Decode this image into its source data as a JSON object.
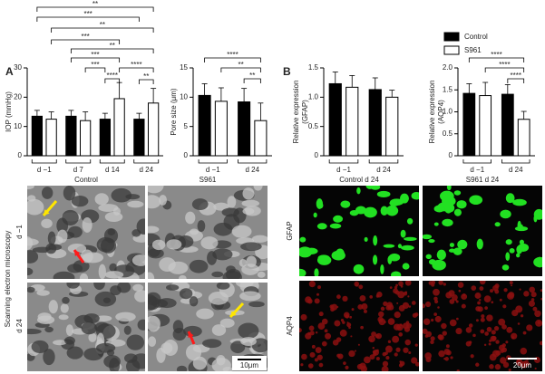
{
  "chart_data": [
    {
      "type": "bar",
      "y_label": [
        "IOP (mmHg)"
      ],
      "categories": [
        "d −1",
        "d 7",
        "d 14",
        "d 24"
      ],
      "series": [
        {
          "color": "#000000",
          "values": [
            13.5,
            13.5,
            12.5,
            12.5
          ],
          "errors": [
            2,
            2,
            2,
            2
          ]
        },
        {
          "color": "#ffffff",
          "values": [
            12.5,
            12,
            19.5,
            18
          ],
          "errors": [
            2.5,
            3,
            5.5,
            5
          ]
        }
      ],
      "ylim": [
        0,
        30
      ],
      "yticks": [
        0,
        10,
        20,
        30
      ],
      "annotations": [
        "**",
        "***",
        "**",
        "***",
        "**",
        "***",
        "***",
        "****",
        "****",
        "**"
      ]
    },
    {
      "type": "bar",
      "y_label": [
        "Pore size (μm)"
      ],
      "categories": [
        "d −1",
        "d 24"
      ],
      "series": [
        {
          "color": "#000000",
          "values": [
            10.3,
            9.2
          ],
          "errors": [
            2,
            2.3
          ]
        },
        {
          "color": "#ffffff",
          "values": [
            9.3,
            6
          ],
          "errors": [
            2.3,
            3
          ]
        }
      ],
      "ylim": [
        0,
        15
      ],
      "yticks": [
        0,
        5,
        10,
        15
      ],
      "annotations": [
        "****",
        "**",
        "**"
      ]
    },
    {
      "type": "bar",
      "y_label": [
        "Relative expression",
        "(GFAP)"
      ],
      "categories": [
        "d −1",
        "d 24"
      ],
      "series": [
        {
          "color": "#000000",
          "values": [
            1.23,
            1.13
          ],
          "errors": [
            0.2,
            0.2
          ]
        },
        {
          "color": "#ffffff",
          "values": [
            1.17,
            1.0
          ],
          "errors": [
            0.2,
            0.12
          ]
        }
      ],
      "ylim": [
        0,
        1.5
      ],
      "yticks": [
        0,
        0.5,
        {
          "value": 1,
          "label": "1.0"
        },
        1.5
      ],
      "annotations": []
    },
    {
      "type": "bar",
      "y_label": [
        "Relative expression",
        "(AQP4)"
      ],
      "categories": [
        "d −1",
        "d 24"
      ],
      "series": [
        {
          "name": "Control",
          "color": "#000000",
          "values": [
            1.42,
            1.4
          ],
          "errors": [
            0.22,
            0.22
          ]
        },
        {
          "name": "S961",
          "color": "#ffffff",
          "values": [
            1.37,
            0.83
          ],
          "errors": [
            0.3,
            0.18
          ]
        }
      ],
      "ylim": [
        0,
        2
      ],
      "yticks": [
        0,
        0.5,
        {
          "value": 1,
          "label": "1.0"
        },
        1.5,
        {
          "value": 2,
          "label": "2.0"
        }
      ],
      "annotations": [
        "****",
        "****",
        "****"
      ]
    }
  ],
  "panel_labels": [
    "A",
    "B"
  ],
  "images": {
    "sem": {
      "title": "Scanning electron microscopy",
      "columns": [
        "Control",
        "S961"
      ],
      "rows": [
        "d −1",
        "d 24"
      ],
      "scale_bar": "10μm"
    },
    "fluorescence": {
      "columns": [
        "Control d 24",
        "S961 d 24"
      ],
      "rows": [
        "GFAP",
        "AQP4"
      ],
      "scale_bar": "20μm"
    }
  }
}
